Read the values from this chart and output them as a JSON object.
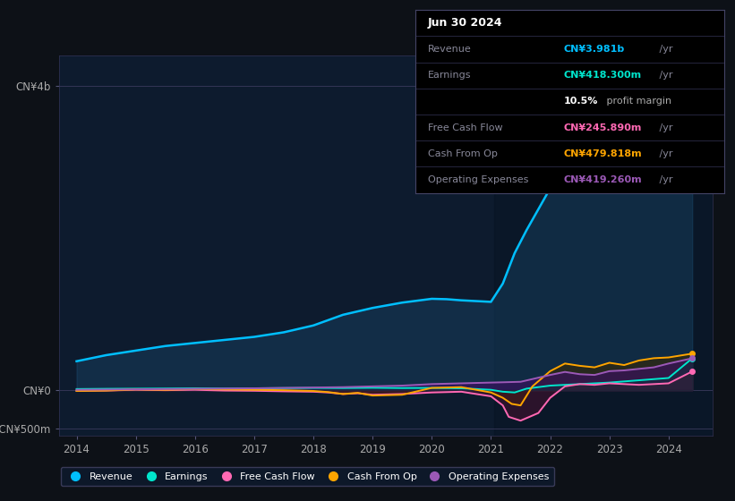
{
  "background_color": "#0d1117",
  "plot_bg_color": "#0d1b2e",
  "highlight_bg": "#0a1628",
  "ylim": [
    -600000000,
    4400000000
  ],
  "xticks": [
    2014,
    2015,
    2016,
    2017,
    2018,
    2019,
    2020,
    2021,
    2022,
    2023,
    2024
  ],
  "ytick_labels": [
    "-CN¥500m",
    "CN¥0",
    "CN¥4b"
  ],
  "ytick_values": [
    -500000000,
    0,
    4000000000
  ],
  "line_colors": {
    "revenue": "#00bfff",
    "earnings": "#00e5cc",
    "free_cash_flow": "#ff69b4",
    "cash_from_op": "#ffa500",
    "operating_expenses": "#9b59b6"
  },
  "legend_items": [
    "Revenue",
    "Earnings",
    "Free Cash Flow",
    "Cash From Op",
    "Operating Expenses"
  ],
  "info_box": {
    "date": "Jun 30 2024",
    "revenue_label": "Revenue",
    "revenue_val": "CN¥3.981b",
    "earnings_label": "Earnings",
    "earnings_val": "CN¥418.300m",
    "profit_margin": "10.5% profit margin",
    "fcf_label": "Free Cash Flow",
    "fcf_val": "CN¥245.890m",
    "cfop_label": "Cash From Op",
    "cfop_val": "CN¥479.818m",
    "opex_label": "Operating Expenses",
    "opex_val": "CN¥419.260m"
  }
}
